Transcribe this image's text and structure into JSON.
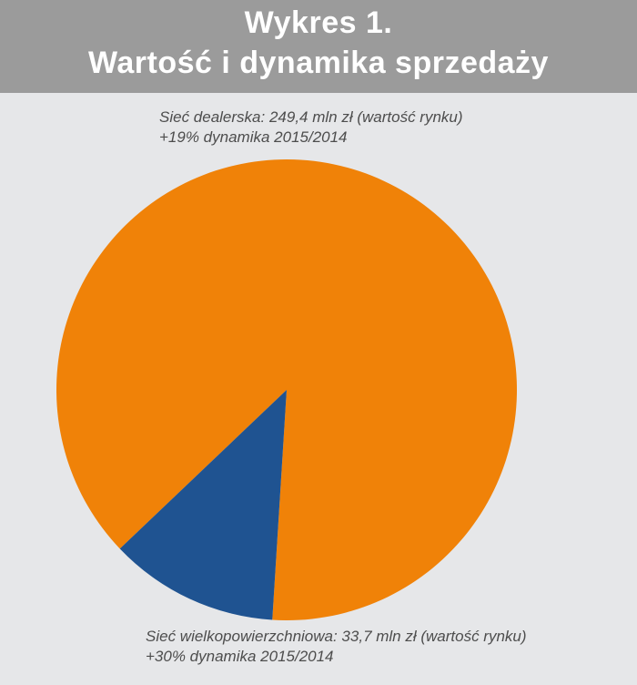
{
  "header": {
    "line1": "Wykres 1.",
    "line2": "Wartość i dynamika sprzedaży"
  },
  "chart_data": {
    "type": "pie",
    "title": "Wykres 1. Wartość i dynamika sprzedaży",
    "slices": [
      {
        "name": "Sieć dealerska",
        "value": 249.4,
        "unit": "mln zł",
        "color": "#f08208",
        "label_line1": "Sieć dealerska: 249,4 mln zł (wartość rynku)",
        "label_line2": "+19% dynamika 2015/2014"
      },
      {
        "name": "Sieć wielkopowierzchniowa",
        "value": 33.7,
        "unit": "mln zł",
        "color": "#1f5391",
        "label_line1": "Sieć wielkopowierzchniowa: 33,7 mln zł (wartość rynku)",
        "label_line2": "+30% dynamika 2015/2014"
      }
    ]
  }
}
